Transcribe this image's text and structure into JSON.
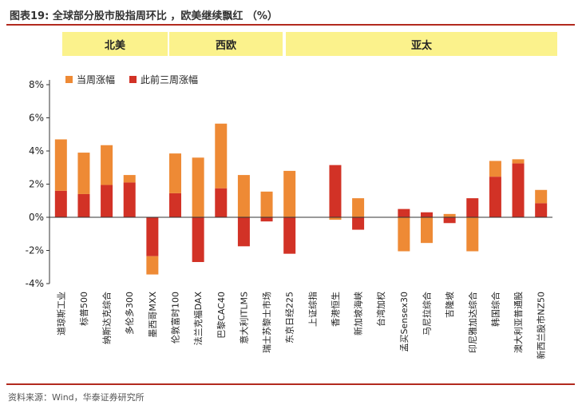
{
  "header": {
    "title": "图表19:  全球部分股市股指周环比 ，欧美继续飘红  （%）"
  },
  "regions": [
    {
      "label": "北美"
    },
    {
      "label": "西欧"
    },
    {
      "label": "亚太"
    }
  ],
  "footer": {
    "source": "资料来源：Wind，华泰证券研究所"
  },
  "colors": {
    "current_week": "#ee8a35",
    "prev_three_weeks": "#d23226",
    "band": "#fbf28c",
    "rule": "#b22a1e"
  },
  "chart_data": {
    "type": "bar",
    "stacked": true,
    "categories": [
      "道琼斯工业",
      "标普500",
      "纳斯达克综合",
      "多伦多300",
      "墨西哥MXX",
      "伦敦富时100",
      "法兰克福DAX",
      "巴黎CAC40",
      "意大利ITLMS",
      "瑞士苏黎士市场",
      "东京日经225",
      "上证综指",
      "香港恒生",
      "新加坡海峡",
      "台湾加权",
      "孟买Sensex30",
      "马尼拉综合",
      "吉隆坡",
      "印尼雅加达综合",
      "韩国综合",
      "澳大利亚普通股",
      "新西兰股市NZ50"
    ],
    "series": [
      {
        "name": "当周涨幅",
        "values": [
          3.1,
          2.5,
          2.4,
          0.45,
          -1.1,
          2.4,
          3.6,
          3.9,
          2.55,
          1.55,
          2.8,
          0.0,
          -0.15,
          1.15,
          0.0,
          -2.05,
          -1.55,
          0.2,
          -2.05,
          0.95,
          0.25,
          0.8
        ]
      },
      {
        "name": "此前三周涨幅",
        "values": [
          1.6,
          1.4,
          1.95,
          2.1,
          -2.35,
          1.45,
          -2.7,
          1.75,
          -1.75,
          -0.25,
          -2.2,
          0.0,
          3.15,
          -0.75,
          0.0,
          0.5,
          0.3,
          -0.35,
          1.15,
          2.45,
          3.25,
          0.85
        ]
      }
    ],
    "ylim": [
      -4,
      8
    ],
    "yticks": [
      "-4%",
      "-2%",
      "0%",
      "2%",
      "4%",
      "6%",
      "8%"
    ],
    "legend_position": "top-left"
  }
}
